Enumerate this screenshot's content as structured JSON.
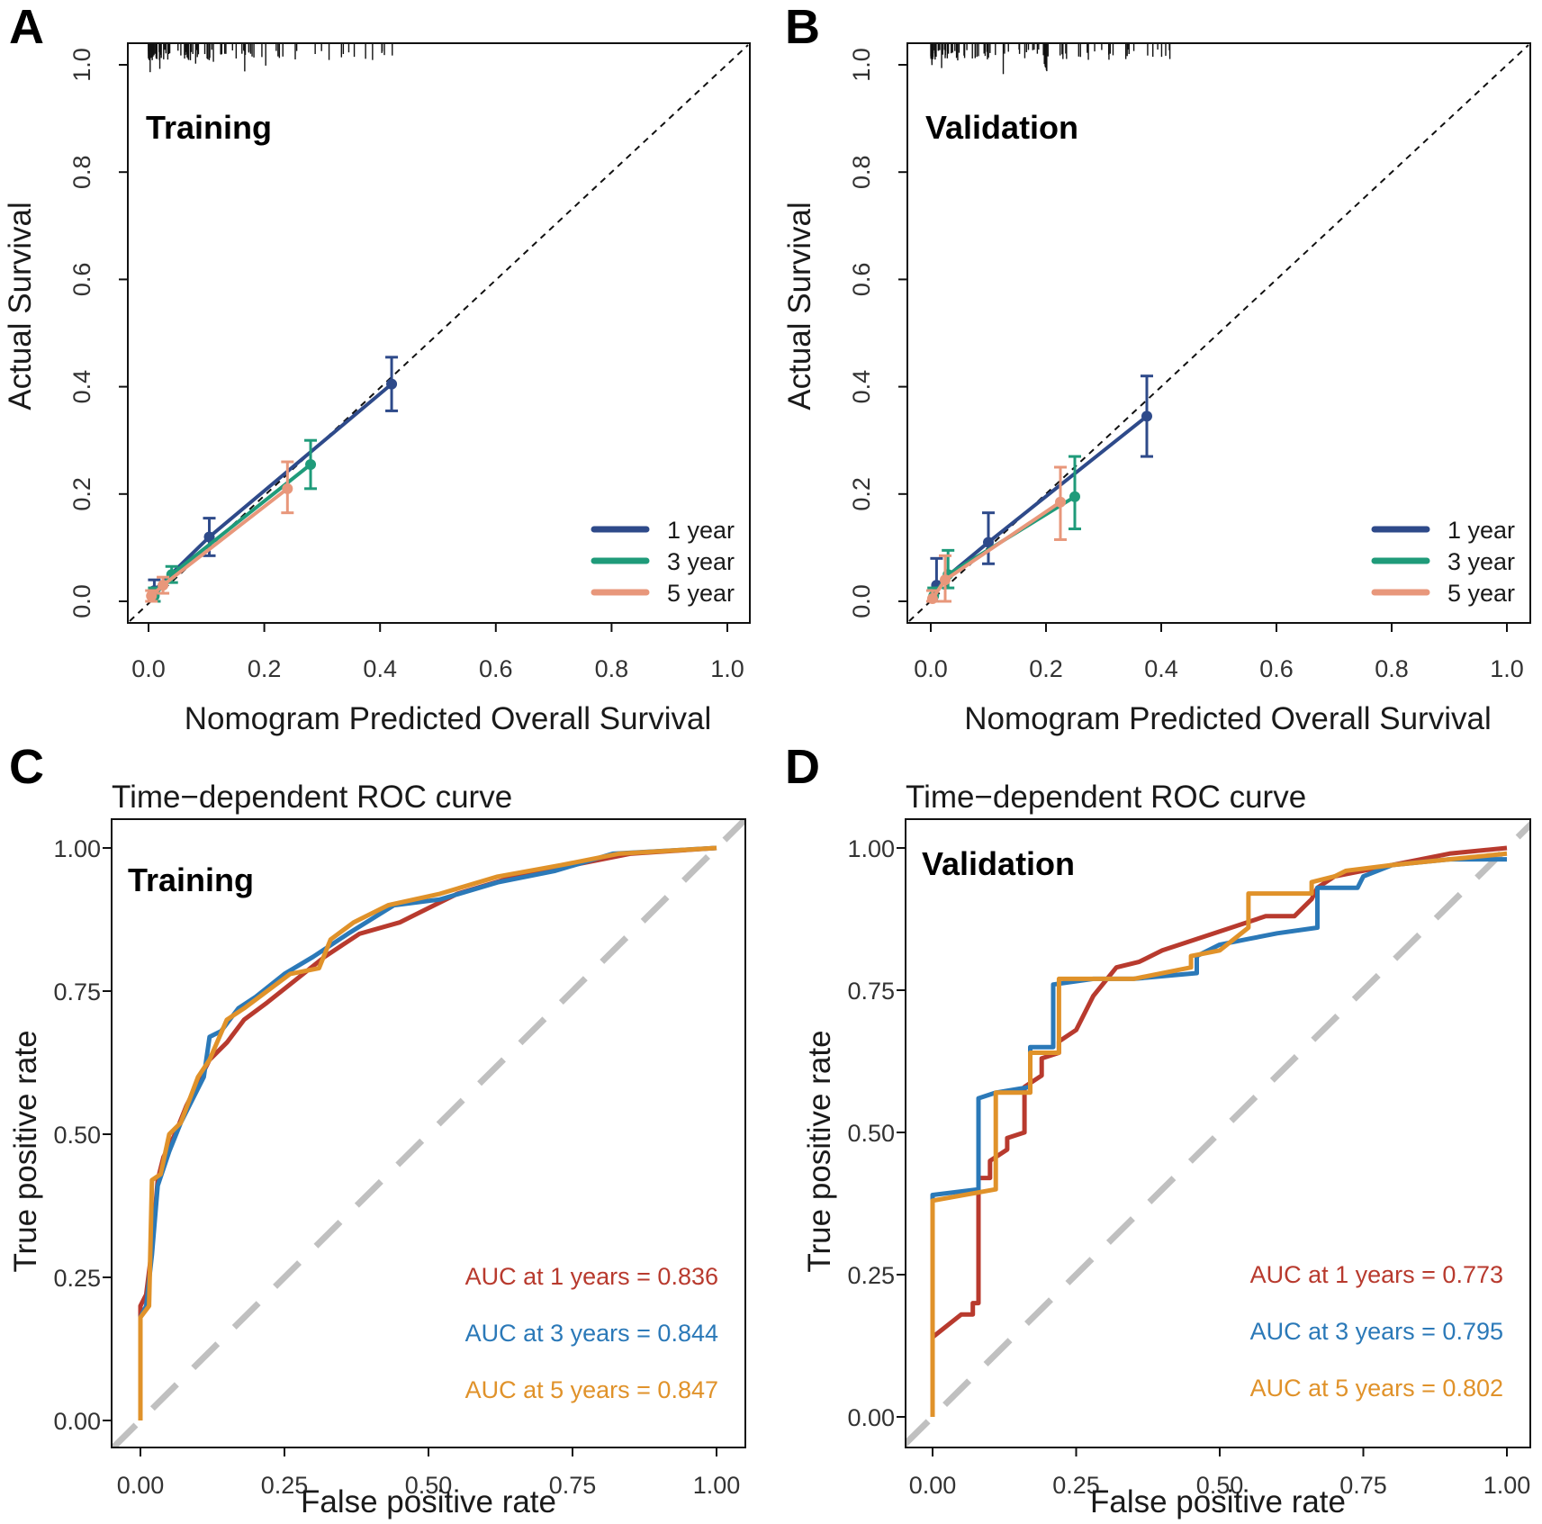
{
  "chart_data": [
    {
      "type": "line",
      "panel": "A",
      "inset_label": "Training",
      "xlabel": "Nomogram Predicted Overall Survival",
      "ylabel": "Actual Survival",
      "xlim": [
        0,
        1
      ],
      "ylim": [
        0,
        1
      ],
      "xticks": [
        "0.0",
        "0.2",
        "0.4",
        "0.6",
        "0.8",
        "1.0"
      ],
      "yticks": [
        "0.0",
        "0.2",
        "0.4",
        "0.6",
        "0.8",
        "1.0"
      ],
      "reference_line": "diagonal",
      "legend": [
        "1 year",
        "3 year",
        "5 year"
      ],
      "series": [
        {
          "name": "1 year",
          "color": "#2e4a8a",
          "x": [
            0.01,
            0.105,
            0.42
          ],
          "y": [
            0.02,
            0.12,
            0.405
          ],
          "lo": [
            0.0,
            0.085,
            0.355
          ],
          "hi": [
            0.04,
            0.155,
            0.455
          ]
        },
        {
          "name": "3 year",
          "color": "#1f9b7a",
          "x": [
            0.01,
            0.04,
            0.28
          ],
          "y": [
            0.01,
            0.05,
            0.255
          ],
          "lo": [
            0.0,
            0.035,
            0.21
          ],
          "hi": [
            0.025,
            0.065,
            0.3
          ]
        },
        {
          "name": "5 year",
          "color": "#e8977b",
          "x": [
            0.005,
            0.025,
            0.24
          ],
          "y": [
            0.01,
            0.03,
            0.21
          ],
          "lo": [
            0.0,
            0.015,
            0.165
          ],
          "hi": [
            0.02,
            0.045,
            0.26
          ]
        }
      ]
    },
    {
      "type": "line",
      "panel": "B",
      "inset_label": "Validation",
      "xlabel": "Nomogram Predicted Overall Survival",
      "ylabel": "Actual Survival",
      "xlim": [
        0,
        1
      ],
      "ylim": [
        0,
        1
      ],
      "xticks": [
        "0.0",
        "0.2",
        "0.4",
        "0.6",
        "0.8",
        "1.0"
      ],
      "yticks": [
        "0.0",
        "0.2",
        "0.4",
        "0.6",
        "0.8",
        "1.0"
      ],
      "reference_line": "diagonal",
      "legend": [
        "1 year",
        "3 year",
        "5 year"
      ],
      "series": [
        {
          "name": "1 year",
          "color": "#2e4a8a",
          "x": [
            0.01,
            0.1,
            0.375
          ],
          "y": [
            0.03,
            0.11,
            0.345
          ],
          "lo": [
            0.0,
            0.07,
            0.27
          ],
          "hi": [
            0.08,
            0.165,
            0.42
          ]
        },
        {
          "name": "3 year",
          "color": "#1f9b7a",
          "x": [
            0.005,
            0.03,
            0.25
          ],
          "y": [
            0.01,
            0.05,
            0.195
          ],
          "lo": [
            0.0,
            0.025,
            0.135
          ],
          "hi": [
            0.025,
            0.095,
            0.27
          ]
        },
        {
          "name": "5 year",
          "color": "#e8977b",
          "x": [
            0.003,
            0.025,
            0.225
          ],
          "y": [
            0.005,
            0.04,
            0.185
          ],
          "lo": [
            0.0,
            0.0,
            0.115
          ],
          "hi": [
            0.02,
            0.085,
            0.25
          ]
        }
      ]
    },
    {
      "type": "line",
      "panel": "C",
      "title": "Time−dependent ROC curve",
      "inset_label": "Training",
      "xlabel": "False positive rate",
      "ylabel": "True positive rate",
      "xlim": [
        0,
        1
      ],
      "ylim": [
        0,
        1
      ],
      "xticks": [
        "0.00",
        "0.25",
        "0.50",
        "0.75",
        "1.00"
      ],
      "yticks": [
        "0.00",
        "0.25",
        "0.50",
        "0.75",
        "1.00"
      ],
      "reference_line": "diagonal",
      "annotations": [
        "AUC at 1 years = 0.836",
        "AUC at 3 years = 0.844",
        "AUC at 5 years = 0.847"
      ],
      "series": [
        {
          "name": "AUC at 1 years = 0.836",
          "color": "#b83a2e",
          "x": [
            0,
            0,
            0.01,
            0.02,
            0.03,
            0.04,
            0.06,
            0.08,
            0.1,
            0.12,
            0.15,
            0.18,
            0.22,
            0.27,
            0.32,
            0.38,
            0.45,
            0.55,
            0.65,
            0.75,
            0.85,
            1.0
          ],
          "y": [
            0,
            0.2,
            0.22,
            0.3,
            0.42,
            0.46,
            0.5,
            0.55,
            0.59,
            0.63,
            0.66,
            0.7,
            0.73,
            0.77,
            0.81,
            0.85,
            0.87,
            0.92,
            0.95,
            0.97,
            0.99,
            1.0
          ]
        },
        {
          "name": "AUC at 3 years = 0.844",
          "color": "#2b79b8",
          "x": [
            0,
            0,
            0.01,
            0.02,
            0.03,
            0.05,
            0.07,
            0.09,
            0.11,
            0.12,
            0.14,
            0.17,
            0.2,
            0.25,
            0.3,
            0.36,
            0.44,
            0.52,
            0.62,
            0.72,
            0.82,
            1.0
          ],
          "y": [
            0,
            0.18,
            0.2,
            0.29,
            0.41,
            0.47,
            0.52,
            0.56,
            0.6,
            0.67,
            0.68,
            0.72,
            0.74,
            0.78,
            0.81,
            0.85,
            0.9,
            0.91,
            0.94,
            0.96,
            0.99,
            1.0
          ]
        },
        {
          "name": "AUC at 5 years = 0.847",
          "color": "#e0922a",
          "x": [
            0,
            0,
            0.015,
            0.02,
            0.035,
            0.05,
            0.07,
            0.1,
            0.12,
            0.15,
            0.18,
            0.22,
            0.26,
            0.31,
            0.33,
            0.37,
            0.43,
            0.52,
            0.62,
            0.73,
            0.83,
            1.0
          ],
          "y": [
            0,
            0.18,
            0.2,
            0.42,
            0.43,
            0.5,
            0.52,
            0.6,
            0.63,
            0.7,
            0.72,
            0.75,
            0.78,
            0.79,
            0.84,
            0.87,
            0.9,
            0.92,
            0.95,
            0.97,
            0.99,
            1.0
          ]
        }
      ]
    },
    {
      "type": "line",
      "panel": "D",
      "title": "Time−dependent ROC curve",
      "inset_label": "Validation",
      "xlabel": "False positive rate",
      "ylabel": "True positive rate",
      "xlim": [
        0,
        1
      ],
      "ylim": [
        0,
        1
      ],
      "xticks": [
        "0.00",
        "0.25",
        "0.50",
        "0.75",
        "1.00"
      ],
      "yticks": [
        "0.00",
        "0.25",
        "0.50",
        "0.75",
        "1.00"
      ],
      "reference_line": "diagonal",
      "annotations": [
        "AUC at 1 years = 0.773",
        "AUC at 3 years = 0.795",
        "AUC at 5 years = 0.802"
      ],
      "series": [
        {
          "name": "AUC at 1 years = 0.773",
          "color": "#b83a2e",
          "x": [
            0,
            0,
            0.05,
            0.07,
            0.07,
            0.08,
            0.08,
            0.1,
            0.1,
            0.13,
            0.13,
            0.16,
            0.16,
            0.19,
            0.19,
            0.22,
            0.22,
            0.25,
            0.28,
            0.32,
            0.36,
            0.4,
            0.46,
            0.52,
            0.58,
            0.63,
            0.66,
            0.67,
            0.7,
            0.8,
            0.9,
            1.0
          ],
          "y": [
            0,
            0.14,
            0.18,
            0.18,
            0.2,
            0.2,
            0.42,
            0.42,
            0.45,
            0.47,
            0.49,
            0.5,
            0.58,
            0.6,
            0.63,
            0.64,
            0.66,
            0.68,
            0.74,
            0.79,
            0.8,
            0.82,
            0.84,
            0.86,
            0.88,
            0.88,
            0.91,
            0.93,
            0.95,
            0.97,
            0.99,
            1.0
          ]
        },
        {
          "name": "AUC at 3 years = 0.795",
          "color": "#2b79b8",
          "x": [
            0,
            0,
            0.08,
            0.08,
            0.11,
            0.11,
            0.17,
            0.17,
            0.21,
            0.21,
            0.28,
            0.35,
            0.46,
            0.46,
            0.5,
            0.55,
            0.6,
            0.67,
            0.67,
            0.74,
            0.75,
            0.8,
            0.9,
            1.0
          ],
          "y": [
            0,
            0.39,
            0.4,
            0.56,
            0.57,
            0.57,
            0.58,
            0.65,
            0.65,
            0.76,
            0.77,
            0.77,
            0.78,
            0.81,
            0.83,
            0.84,
            0.85,
            0.86,
            0.93,
            0.93,
            0.95,
            0.97,
            0.98,
            0.98
          ]
        },
        {
          "name": "AUC at 5 years = 0.802",
          "color": "#e0922a",
          "x": [
            0,
            0,
            0.11,
            0.11,
            0.17,
            0.17,
            0.22,
            0.22,
            0.3,
            0.35,
            0.45,
            0.45,
            0.5,
            0.55,
            0.55,
            0.66,
            0.66,
            0.7,
            0.72,
            0.8,
            0.9,
            1.0
          ],
          "y": [
            0,
            0.38,
            0.4,
            0.57,
            0.57,
            0.64,
            0.64,
            0.77,
            0.77,
            0.77,
            0.79,
            0.81,
            0.82,
            0.86,
            0.92,
            0.92,
            0.94,
            0.95,
            0.96,
            0.97,
            0.98,
            0.99
          ]
        }
      ]
    }
  ]
}
